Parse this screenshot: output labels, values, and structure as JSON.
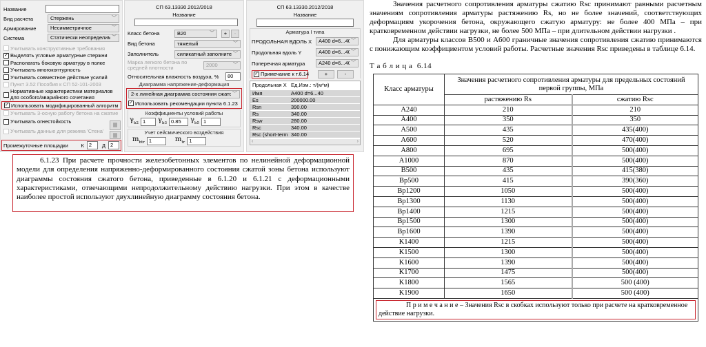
{
  "left_panel": {
    "name_label": "Название",
    "name_value": "",
    "calc_type_label": "Вид расчета",
    "calc_type_value": "Стержень",
    "reinforcement_label": "Армирование",
    "reinforcement_value": "Несимметричное",
    "system_label": "Система",
    "system_value": "Статически неопределима",
    "checkboxes": [
      {
        "label": "Учитывать конструктивные требования",
        "checked": false,
        "disabled": true
      },
      {
        "label": "Выделять угловые арматурные стержни",
        "checked": true,
        "disabled": false
      },
      {
        "label": "Располагать боковую арматуру в полке",
        "checked": false,
        "disabled": false
      },
      {
        "label": "Учитывать многоконтурность",
        "checked": false,
        "disabled": false
      },
      {
        "label": "Учитывать совместное действие усилий",
        "checked": false,
        "disabled": false
      },
      {
        "label": "Пункт 3.52 Пособия к СП 52-101-2003",
        "checked": false,
        "disabled": true
      },
      {
        "label": "Нормативные характеристики материалов для особого/аварийного сочетания",
        "checked": false,
        "disabled": false
      },
      {
        "label": "Использовать модифицированный алгоритм",
        "checked": true,
        "disabled": false
      },
      {
        "label": "Учитывать 3-осную работу бетона на сжатие",
        "checked": false,
        "disabled": true
      },
      {
        "label": "Учитывать огнестойкость",
        "checked": false,
        "disabled": false
      },
      {
        "label": "Учитывать данные для режима 'Стена'",
        "checked": false,
        "disabled": true
      }
    ],
    "intermediate_label": "Промежуточные площадки",
    "k_label": "К",
    "k_value": "2",
    "d_label": "Д",
    "d_value": "2"
  },
  "concrete_panel": {
    "standard": "СП 63.13330.2012/2018",
    "name_label": "Название",
    "name_value": "",
    "class_label": "Класс бетона",
    "class_value": "B20",
    "plus": "+",
    "minus": "-",
    "type_label": "Вид бетона",
    "type_value": "тяжелый",
    "filler_label": "Заполнитель",
    "filler_value": "силикатный заполнитель",
    "grade_label": "Марка легкого бетона по средней плотности",
    "grade_value": "2000",
    "humidity_label": "Относительная влажность воздуха, %",
    "humidity_value": "80",
    "diagram_title": "Диаграмма напряжение-деформация",
    "diagram_value": "2-х линейная диаграмма состояния сжатого бетона",
    "use_recommendations_label": "Использовать рекомендации пункта 6.1.23",
    "use_recommendations_checked": true,
    "coef_title": "Коэффициенты условий работы",
    "gb2": "1",
    "gb3": "0.85",
    "gb5": "1",
    "seismic_title": "Учет сейсмического воздействия",
    "mbtr": "1",
    "mtr": "1"
  },
  "rebar_panel": {
    "standard": "СП 63.13330.2012/2018",
    "name_label": "Название",
    "name_value": "",
    "group_title": "Арматура I типа",
    "rows": [
      {
        "label": "ПРОДОЛЬНАЯ ВДОЛЬ X",
        "value": "A400 d=6...40"
      },
      {
        "label": "Продольная вдоль Y",
        "value": "A400 d=6...40"
      },
      {
        "label": "Поперечная арматура",
        "value": "A240 d=6...40"
      }
    ],
    "note_label": "Примечание к т.6.14",
    "note_checked": true,
    "plus": "+",
    "minus": "-",
    "grid_header": [
      "Продольная X",
      "Ед.Изм.: т/(м*м)"
    ],
    "grid_rows": [
      [
        "Имя",
        "A400 d=6...40"
      ],
      [
        "Es",
        "200000.00"
      ],
      [
        "Rsn",
        "390.00"
      ],
      [
        "Rs",
        "340.00"
      ],
      [
        "Rsw",
        "280.00"
      ],
      [
        "Rsc",
        "340.00"
      ],
      [
        "Rsc (short-term ...",
        "340.00"
      ]
    ]
  },
  "clause_text": "6.1.23 При расчете прочности железобетонных элементов по нелинейной деформационной модели для определения напряженно-деформированного состояния сжатой зоны бетона используют диаграммы состояния сжатого бетона, приведенные в 6.1.20 и 6.1.21 с деформационными характеристиками, отвечающими непродолжительному действию нагрузки. При этом в качестве наиболее простой используют двухлинейную диаграмму состояния бетона.",
  "doc": {
    "para1": "Значения расчетного сопротивления арматуры сжатию Rsc принимают равными расчетным значениям сопротивления арматуры растяжению Rs, но не более значений, соответствующих деформациям укорочения бетона, окружающего сжатую арматуру: не более 400 МПа – при кратковременном действии нагрузки, не более 500 МПа – при длительном действии нагрузки .",
    "para2": "Для арматуры классов В500 и А600 граничные значения сопротивления сжатию принимаются с понижающим коэффициентом условий работы. Расчетные значения Rsc приведены в таблице 6.14.",
    "table_title": "Т а б л и ц а  6.14",
    "table": {
      "col1": "Класс арматуры",
      "group_header": "Значения расчетного сопротивления арматуры для предельных состояний первой группы, МПа",
      "col2": "растяжению Rs",
      "col3": "сжатию Rsc",
      "rows": [
        [
          "A240",
          "210",
          "210"
        ],
        [
          "A400",
          "350",
          "350"
        ],
        [
          "A500",
          "435",
          "435(400)"
        ],
        [
          "A600",
          "520",
          "470(400)"
        ],
        [
          "A800",
          "695",
          "500(400)"
        ],
        [
          "A1000",
          "870",
          "500(400)"
        ],
        [
          "B500",
          "435",
          "415(380)"
        ],
        [
          "Bp500",
          "415",
          "390(360)"
        ],
        [
          "Bp1200",
          "1050",
          "500(400)"
        ],
        [
          "Bp1300",
          "1130",
          "500(400)"
        ],
        [
          "Bp1400",
          "1215",
          "500(400)"
        ],
        [
          "Bp1500",
          "1300",
          "500(400)"
        ],
        [
          "Bp1600",
          "1390",
          "500(400)"
        ],
        [
          "K1400",
          "1215",
          "500(400)"
        ],
        [
          "K1500",
          "1300",
          "500(400)"
        ],
        [
          "K1600",
          "1390",
          "500(400)"
        ],
        [
          "K1700",
          "1475",
          "500(400)"
        ],
        [
          "K1800",
          "1565",
          "500 (400)"
        ],
        [
          "K1900",
          "1650",
          "500 (400)"
        ]
      ],
      "note": "П р и м е ч а н и е – Значения Rsc в скобках используют только при расчете на кратковременное действие нагрузки."
    }
  },
  "colors": {
    "highlight": "#c8232c",
    "panel_bg": "#f0f0f0"
  }
}
